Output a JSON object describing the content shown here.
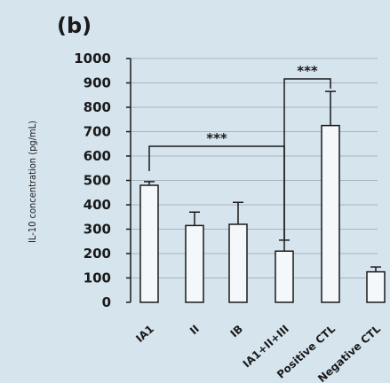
{
  "panel_label": "(b)",
  "chart_data": {
    "type": "bar",
    "ylabel": "IL-10 concentration (pg/mL)",
    "xlabel": "",
    "ylim": [
      0,
      1000
    ],
    "yticks": [
      0,
      100,
      200,
      300,
      400,
      500,
      600,
      700,
      800,
      900,
      1000
    ],
    "grid": "horizontal",
    "categories": [
      "IA1",
      "II",
      "IB",
      "IA1+II+III",
      "Positive CTL",
      "Negative CTL"
    ],
    "values": [
      480,
      315,
      320,
      210,
      725,
      125
    ],
    "errors": [
      15,
      55,
      90,
      45,
      140,
      20
    ],
    "significance": [
      {
        "label": "***",
        "from_category": "IA1",
        "to_category": "IA1+II+III"
      },
      {
        "label": "***",
        "from_category": "IA1+II+III",
        "to_category": "Positive CTL"
      }
    ]
  },
  "colors": {
    "background": "#d6e4ee",
    "bar_fill": "#f4f8fb",
    "stroke": "#1a1a1a",
    "grid": "#a8b4be"
  }
}
